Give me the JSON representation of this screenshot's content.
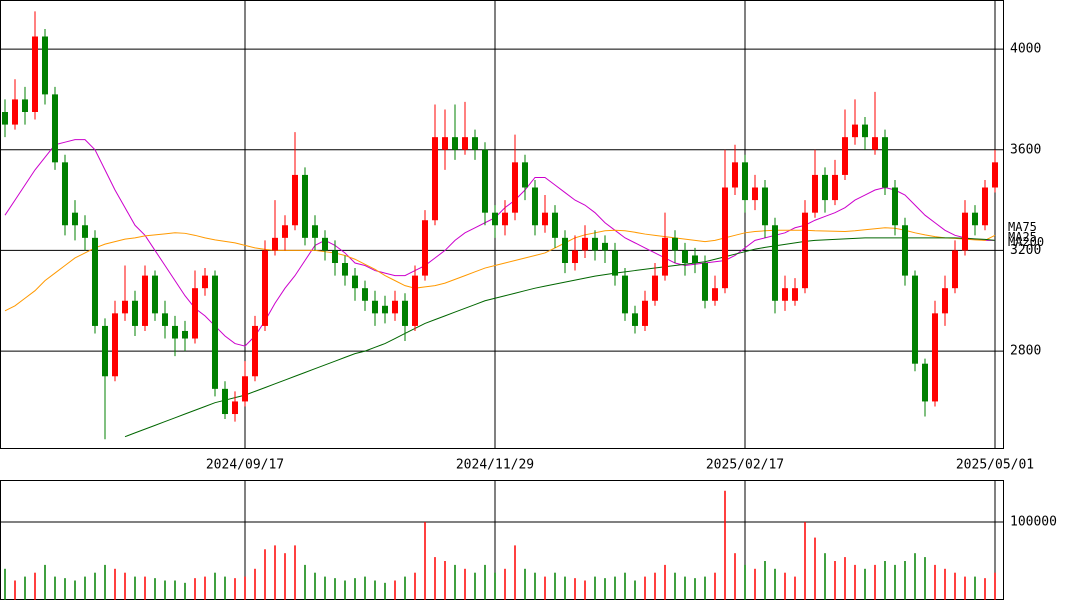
{
  "chart_data": [
    {
      "type": "candlestick",
      "categories": [
        null,
        null,
        null,
        null,
        null,
        null,
        null,
        null,
        null,
        null,
        null,
        null,
        null,
        null,
        null,
        null,
        null,
        null,
        null,
        null,
        null,
        null,
        null,
        null,
        "2024/09/17",
        null,
        null,
        null,
        null,
        null,
        null,
        null,
        null,
        null,
        null,
        null,
        null,
        null,
        null,
        null,
        null,
        null,
        null,
        null,
        null,
        null,
        null,
        null,
        null,
        "2024/11/29",
        null,
        null,
        null,
        null,
        null,
        null,
        null,
        null,
        null,
        null,
        null,
        null,
        null,
        null,
        null,
        null,
        null,
        null,
        null,
        null,
        null,
        null,
        null,
        null,
        "2025/02/17",
        null,
        null,
        null,
        null,
        null,
        null,
        null,
        null,
        null,
        null,
        null,
        null,
        null,
        null,
        null,
        null,
        null,
        null,
        null,
        null,
        null,
        null,
        null,
        null,
        "2025/05/01"
      ],
      "open": [
        3750,
        3700,
        3800,
        3750,
        4050,
        3820,
        3550,
        3350,
        3300,
        3250,
        2900,
        2700,
        2950,
        3000,
        2900,
        3100,
        2950,
        2900,
        2880,
        2850,
        3050,
        3100,
        2650,
        2550,
        2600,
        2700,
        2900,
        3200,
        3250,
        3300,
        3500,
        3300,
        3250,
        3200,
        3150,
        3100,
        3050,
        3000,
        2980,
        2950,
        3000,
        2900,
        3100,
        3320,
        3600,
        3650,
        3600,
        3650,
        3600,
        3350,
        3300,
        3350,
        3550,
        3450,
        3300,
        3350,
        3250,
        3150,
        3200,
        3250,
        3230,
        3200,
        3100,
        2950,
        2900,
        3000,
        3100,
        3250,
        3200,
        3180,
        3150,
        3000,
        3050,
        3450,
        3550,
        3400,
        3450,
        3300,
        3000,
        3000,
        3050,
        3350,
        3500,
        3400,
        3500,
        3650,
        3700,
        3600,
        3650,
        3450,
        3300,
        3100,
        2750,
        2600,
        2950,
        3050,
        3200,
        3350,
        3300,
        3450
      ],
      "high": [
        3800,
        3880,
        3850,
        4150,
        4080,
        3850,
        3580,
        3400,
        3340,
        3280,
        2930,
        3000,
        3140,
        3040,
        3140,
        3120,
        3000,
        2940,
        2920,
        3120,
        3130,
        3120,
        2680,
        2640,
        2760,
        2940,
        3240,
        3400,
        3340,
        3670,
        3530,
        3340,
        3280,
        3240,
        3180,
        3130,
        3080,
        3040,
        3020,
        3040,
        3030,
        3140,
        3360,
        3780,
        3760,
        3780,
        3790,
        3680,
        3630,
        3380,
        3400,
        3660,
        3580,
        3480,
        3420,
        3380,
        3280,
        3260,
        3300,
        3280,
        3260,
        3230,
        3130,
        2980,
        3040,
        3150,
        3350,
        3280,
        3230,
        3210,
        3180,
        3100,
        3600,
        3620,
        3580,
        3500,
        3480,
        3330,
        3100,
        3090,
        3400,
        3600,
        3530,
        3560,
        3760,
        3800,
        3730,
        3830,
        3680,
        3480,
        3330,
        3120,
        2770,
        3000,
        3100,
        3240,
        3400,
        3380,
        3480,
        3600
      ],
      "low": [
        3650,
        3680,
        3700,
        3720,
        3780,
        3520,
        3260,
        3240,
        3200,
        2870,
        2450,
        2680,
        2920,
        2860,
        2880,
        2920,
        2850,
        2780,
        2800,
        2830,
        3020,
        2620,
        2530,
        2520,
        2580,
        2680,
        2880,
        3180,
        3200,
        3280,
        3220,
        3200,
        3160,
        3100,
        3060,
        3000,
        2960,
        2900,
        2910,
        2920,
        2840,
        2880,
        3080,
        3300,
        3520,
        3560,
        3580,
        3560,
        3300,
        3250,
        3260,
        3320,
        3400,
        3260,
        3270,
        3210,
        3110,
        3120,
        3170,
        3160,
        3150,
        3060,
        2920,
        2870,
        2880,
        2980,
        3080,
        3150,
        3100,
        3110,
        2970,
        2980,
        3030,
        3420,
        3350,
        3360,
        3250,
        2950,
        2960,
        2980,
        3030,
        3330,
        3350,
        3380,
        3480,
        3620,
        3600,
        3580,
        3420,
        3260,
        3060,
        2720,
        2540,
        2580,
        2900,
        3030,
        3180,
        3260,
        3280,
        3430
      ],
      "close": [
        3700,
        3800,
        3750,
        4050,
        3820,
        3550,
        3300,
        3300,
        3250,
        2900,
        2700,
        2950,
        3000,
        2900,
        3100,
        2950,
        2900,
        2850,
        2850,
        3050,
        3100,
        2650,
        2550,
        2600,
        2700,
        2900,
        3200,
        3250,
        3300,
        3500,
        3250,
        3250,
        3200,
        3150,
        3100,
        3050,
        3000,
        2950,
        2950,
        3000,
        2900,
        3100,
        3320,
        3650,
        3650,
        3600,
        3650,
        3600,
        3350,
        3300,
        3350,
        3550,
        3450,
        3300,
        3350,
        3250,
        3150,
        3200,
        3250,
        3200,
        3200,
        3100,
        2950,
        2900,
        3000,
        3100,
        3250,
        3200,
        3150,
        3150,
        3000,
        3050,
        3450,
        3550,
        3400,
        3450,
        3300,
        3000,
        3050,
        3050,
        3350,
        3500,
        3400,
        3500,
        3650,
        3700,
        3650,
        3650,
        3450,
        3300,
        3100,
        2750,
        2600,
        2950,
        3050,
        3200,
        3350,
        3300,
        3450,
        3550
      ],
      "up_color": "#ff0000",
      "down_color": "#008000",
      "series": [
        {
          "name": "MA25",
          "color": "#cc00cc",
          "values": [
            3340,
            3400,
            3460,
            3520,
            3570,
            3620,
            3630,
            3640,
            3640,
            3600,
            3520,
            3440,
            3370,
            3300,
            3260,
            3200,
            3140,
            3080,
            3020,
            2970,
            2940,
            2900,
            2860,
            2830,
            2820,
            2860,
            2920,
            2990,
            3050,
            3100,
            3160,
            3220,
            3240,
            3220,
            3190,
            3150,
            3140,
            3120,
            3110,
            3100,
            3100,
            3120,
            3140,
            3170,
            3200,
            3240,
            3270,
            3290,
            3310,
            3330,
            3370,
            3400,
            3440,
            3490,
            3490,
            3460,
            3430,
            3400,
            3380,
            3350,
            3310,
            3280,
            3250,
            3230,
            3210,
            3190,
            3170,
            3150,
            3140,
            3145,
            3150,
            3155,
            3160,
            3180,
            3210,
            3240,
            3250,
            3260,
            3270,
            3290,
            3300,
            3320,
            3335,
            3350,
            3370,
            3400,
            3420,
            3440,
            3450,
            3440,
            3420,
            3380,
            3340,
            3310,
            3280,
            3260,
            3250,
            3245,
            3240,
            3240
          ]
        },
        {
          "name": "MA75",
          "color": "#ff9900",
          "values": [
            2960,
            2980,
            3010,
            3040,
            3080,
            3110,
            3140,
            3170,
            3190,
            3210,
            3225,
            3235,
            3245,
            3250,
            3258,
            3262,
            3266,
            3270,
            3268,
            3260,
            3250,
            3242,
            3236,
            3230,
            3220,
            3210,
            3204,
            3200,
            3200,
            3200,
            3200,
            3200,
            3195,
            3190,
            3180,
            3165,
            3145,
            3125,
            3100,
            3080,
            3060,
            3050,
            3055,
            3060,
            3070,
            3085,
            3100,
            3115,
            3130,
            3140,
            3150,
            3160,
            3170,
            3180,
            3190,
            3210,
            3230,
            3250,
            3262,
            3270,
            3278,
            3280,
            3278,
            3272,
            3265,
            3260,
            3255,
            3250,
            3245,
            3240,
            3235,
            3240,
            3250,
            3260,
            3270,
            3275,
            3278,
            3280,
            3280,
            3280,
            3280,
            3278,
            3277,
            3276,
            3275,
            3278,
            3282,
            3286,
            3290,
            3288,
            3280,
            3270,
            3262,
            3255,
            3250,
            3248,
            3245,
            3242,
            3240,
            3260
          ]
        },
        {
          "name": "MA200",
          "color": "#006600",
          "values": [
            null,
            null,
            null,
            null,
            null,
            null,
            null,
            null,
            null,
            null,
            null,
            null,
            2460,
            2475,
            2490,
            2505,
            2520,
            2535,
            2550,
            2565,
            2580,
            2595,
            2605,
            2615,
            2625,
            2640,
            2655,
            2670,
            2685,
            2700,
            2715,
            2730,
            2745,
            2760,
            2775,
            2790,
            2800,
            2815,
            2830,
            2850,
            2870,
            2890,
            2910,
            2925,
            2940,
            2955,
            2970,
            2985,
            3000,
            3010,
            3020,
            3030,
            3040,
            3050,
            3058,
            3066,
            3074,
            3082,
            3090,
            3098,
            3104,
            3110,
            3115,
            3120,
            3125,
            3130,
            3135,
            3140,
            3145,
            3150,
            3155,
            3165,
            3175,
            3185,
            3195,
            3205,
            3212,
            3218,
            3224,
            3230,
            3236,
            3240,
            3242,
            3244,
            3246,
            3248,
            3250,
            3250,
            3250,
            3250,
            3250,
            3250,
            3250,
            3250,
            3250,
            3250,
            3248,
            3246,
            3244,
            3240
          ]
        }
      ],
      "ylim": [
        2415,
        4195
      ],
      "yticks": [
        2800,
        3200,
        3600,
        4000
      ],
      "grid": true
    },
    {
      "type": "bar",
      "values": [
        40000,
        25000,
        30000,
        35000,
        45000,
        30000,
        28000,
        25000,
        30000,
        35000,
        45000,
        40000,
        35000,
        30000,
        30000,
        28000,
        25000,
        25000,
        22000,
        28000,
        30000,
        35000,
        30000,
        28000,
        30000,
        40000,
        65000,
        70000,
        60000,
        70000,
        45000,
        35000,
        30000,
        28000,
        25000,
        28000,
        30000,
        25000,
        22000,
        25000,
        30000,
        35000,
        100000,
        55000,
        50000,
        45000,
        40000,
        35000,
        45000,
        35000,
        40000,
        70000,
        40000,
        35000,
        30000,
        35000,
        30000,
        28000,
        25000,
        30000,
        28000,
        30000,
        35000,
        25000,
        30000,
        35000,
        45000,
        35000,
        30000,
        28000,
        30000,
        35000,
        140000,
        60000,
        45000,
        40000,
        50000,
        40000,
        35000,
        30000,
        100000,
        80000,
        60000,
        50000,
        55000,
        45000,
        40000,
        45000,
        50000,
        45000,
        50000,
        60000,
        55000,
        45000,
        40000,
        35000,
        30000,
        30000,
        28000,
        35000
      ],
      "ylim": [
        0,
        153800
      ],
      "yticks": [
        100000
      ],
      "grid": true
    }
  ]
}
